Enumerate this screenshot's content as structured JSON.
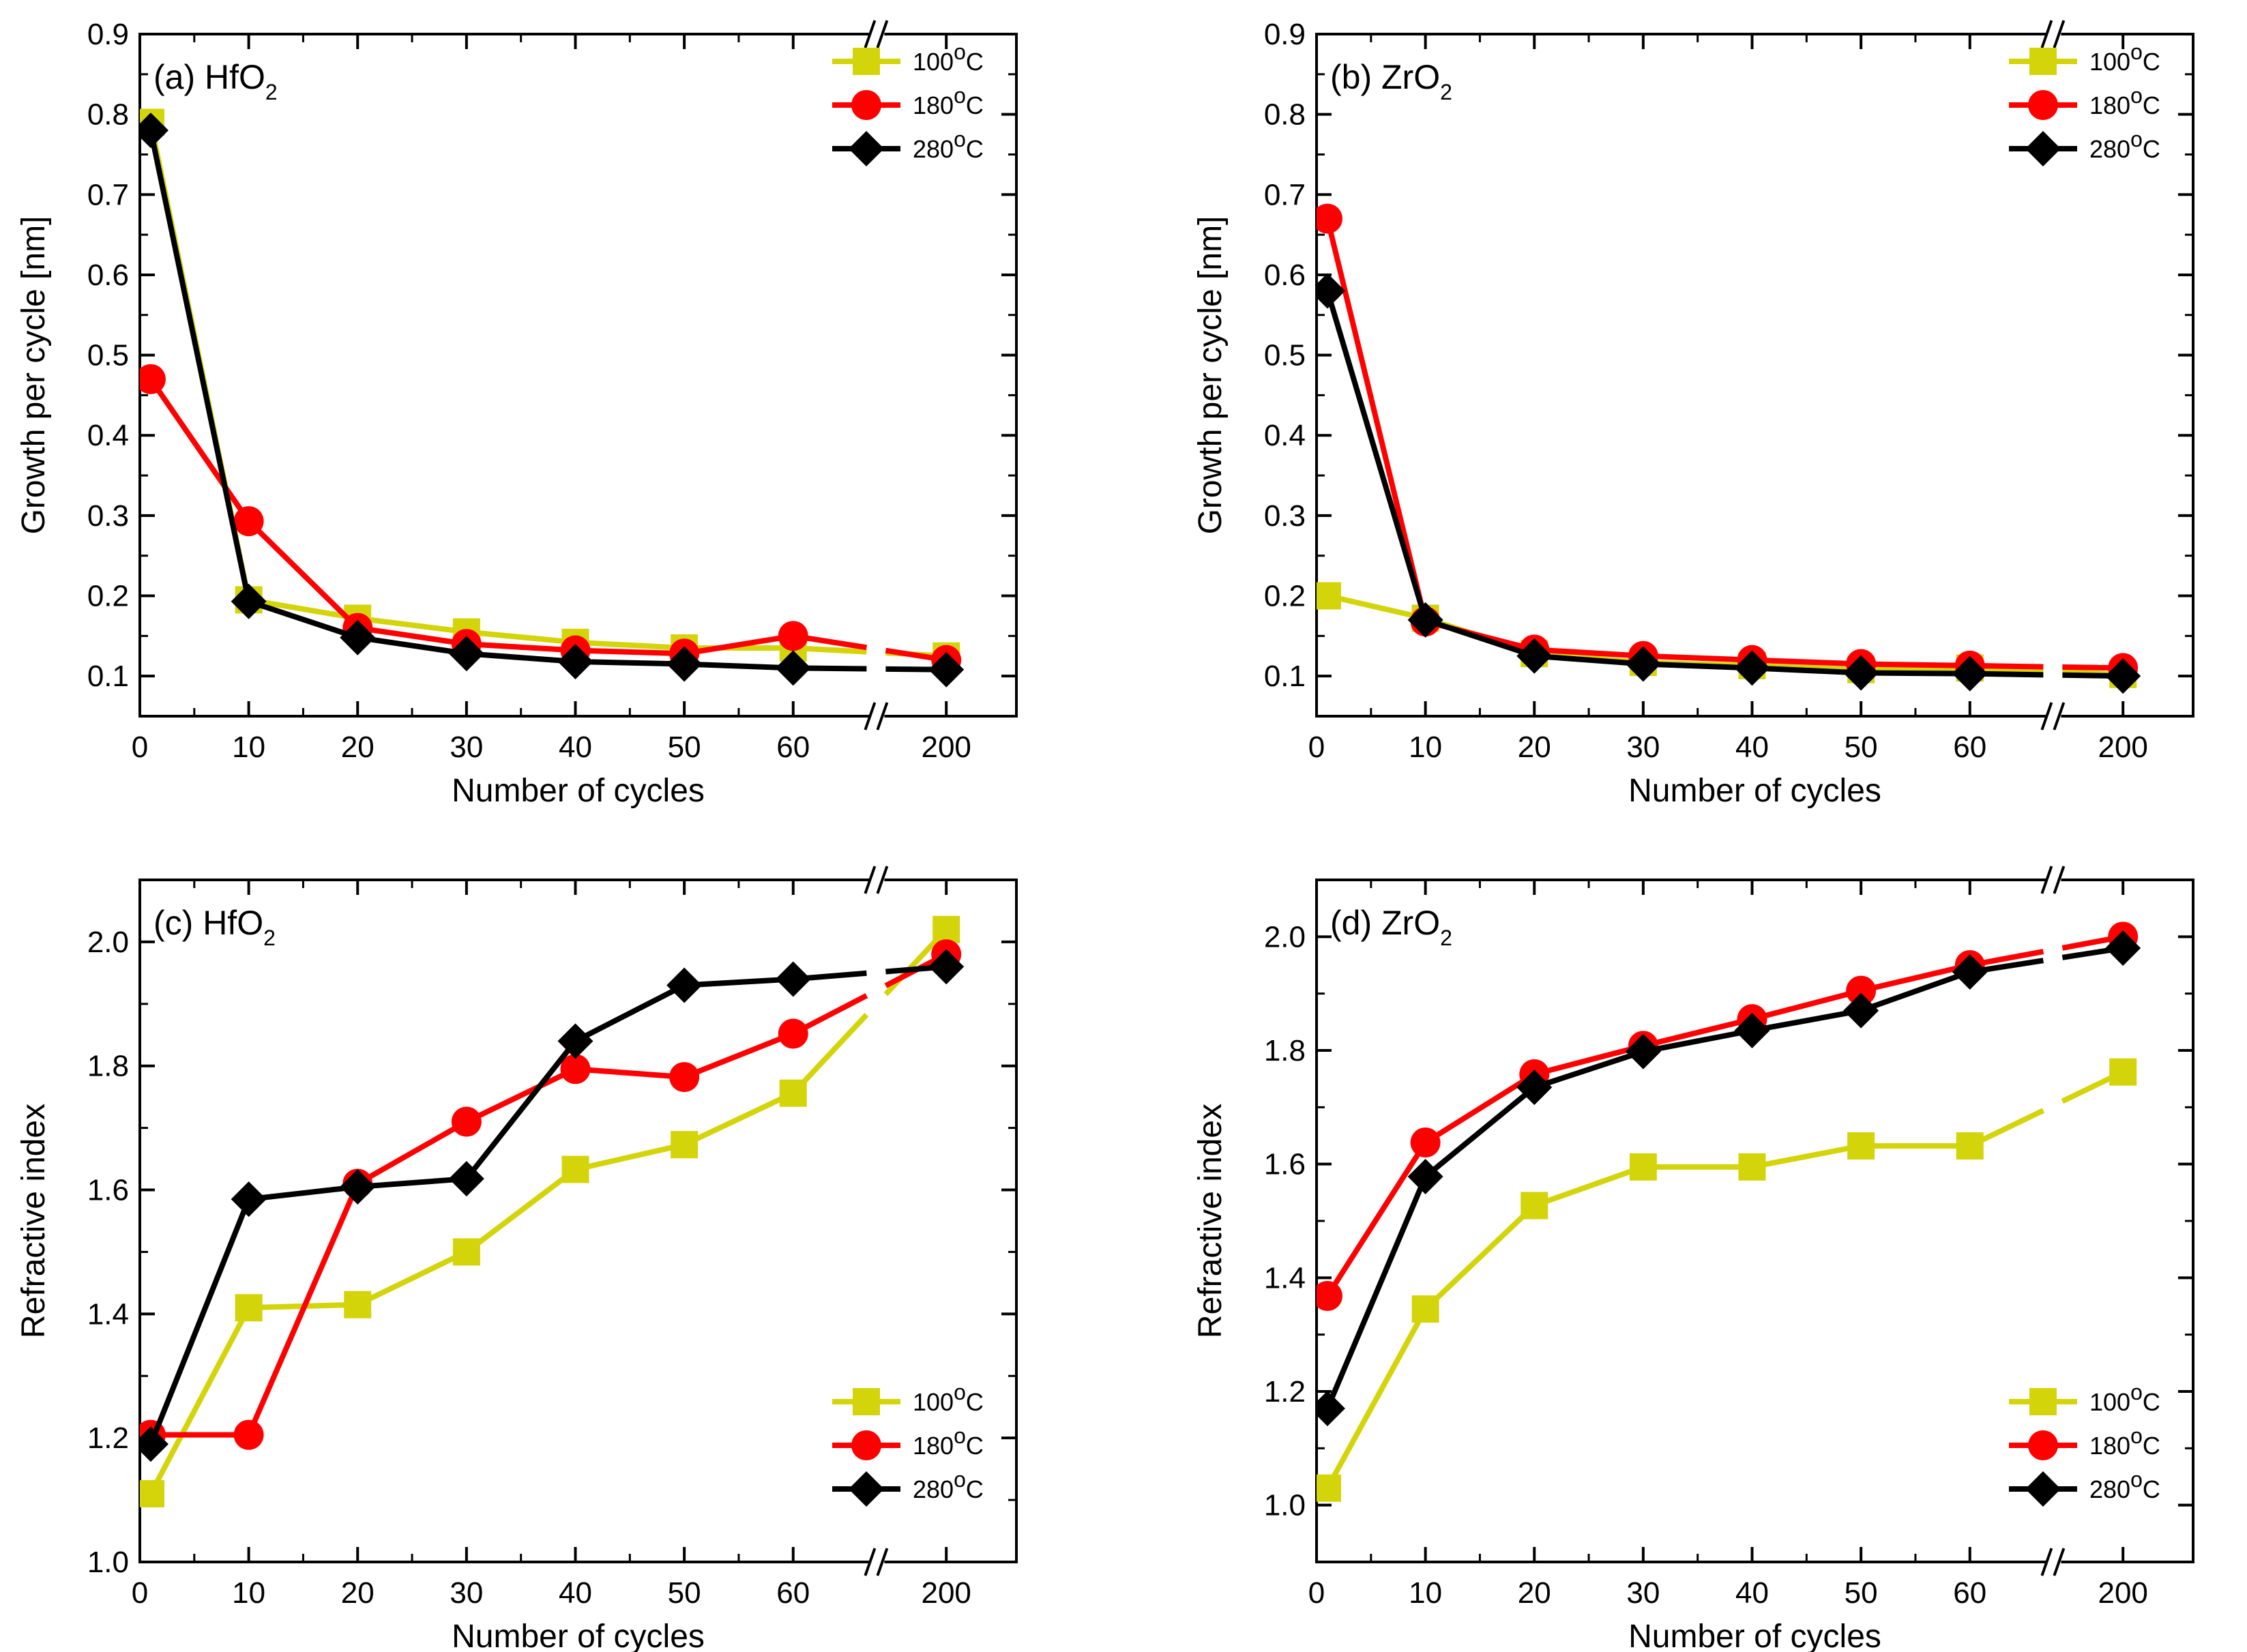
{
  "figure": {
    "panel_count": 4
  },
  "chart_data": [
    {
      "type": "line",
      "panel_label": "(a) HfO",
      "panel_sub": "2",
      "xlabel": "Number of cycles",
      "ylabel": "Growth per cycle [nm]",
      "ylim": [
        0.05,
        0.9
      ],
      "yticks": [
        0.1,
        0.2,
        0.3,
        0.4,
        0.5,
        0.6,
        0.7,
        0.8,
        0.9
      ],
      "ytick_labels": [
        "0.1",
        "0.2",
        "0.3",
        "0.4",
        "0.5",
        "0.6",
        "0.7",
        "0.8",
        "0.9"
      ],
      "x_break": true,
      "x": [
        1,
        10,
        20,
        30,
        40,
        50,
        60,
        200
      ],
      "xticks": [
        0,
        10,
        20,
        30,
        40,
        50,
        60,
        200
      ],
      "xtick_labels": [
        "0",
        "10",
        "20",
        "30",
        "40",
        "50",
        "60",
        "200"
      ],
      "legend_position": "top-right",
      "series": [
        {
          "name": "100",
          "name_sup": "o",
          "name_suffix": "C",
          "color": "#d4d40a",
          "marker": "square",
          "values": [
            0.79,
            0.195,
            0.172,
            0.155,
            0.142,
            0.135,
            0.135,
            0.125
          ]
        },
        {
          "name": "180",
          "name_sup": "o",
          "name_suffix": "C",
          "color": "#ff0000",
          "marker": "circle",
          "values": [
            0.47,
            0.293,
            0.16,
            0.14,
            0.132,
            0.128,
            0.15,
            0.12
          ]
        },
        {
          "name": "280",
          "name_sup": "o",
          "name_suffix": "C",
          "color": "#000000",
          "marker": "diamond",
          "values": [
            0.78,
            0.193,
            0.148,
            0.128,
            0.118,
            0.115,
            0.11,
            0.108
          ]
        }
      ]
    },
    {
      "type": "line",
      "panel_label": "(b) ZrO",
      "panel_sub": "2",
      "xlabel": "Number of cycles",
      "ylabel": "Growth per cycle [nm]",
      "ylim": [
        0.05,
        0.9
      ],
      "yticks": [
        0.1,
        0.2,
        0.3,
        0.4,
        0.5,
        0.6,
        0.7,
        0.8,
        0.9
      ],
      "ytick_labels": [
        "0.1",
        "0.2",
        "0.3",
        "0.4",
        "0.5",
        "0.6",
        "0.7",
        "0.8",
        "0.9"
      ],
      "x_break": true,
      "x": [
        1,
        10,
        20,
        30,
        40,
        50,
        60,
        200
      ],
      "xticks": [
        0,
        10,
        20,
        30,
        40,
        50,
        60,
        200
      ],
      "xtick_labels": [
        "0",
        "10",
        "20",
        "30",
        "40",
        "50",
        "60",
        "200"
      ],
      "legend_position": "top-right",
      "series": [
        {
          "name": "100",
          "name_sup": "o",
          "name_suffix": "C",
          "color": "#d4d40a",
          "marker": "square",
          "values": [
            0.2,
            0.172,
            0.128,
            0.117,
            0.113,
            0.108,
            0.11,
            0.102
          ]
        },
        {
          "name": "180",
          "name_sup": "o",
          "name_suffix": "C",
          "color": "#ff0000",
          "marker": "circle",
          "values": [
            0.67,
            0.168,
            0.133,
            0.125,
            0.12,
            0.115,
            0.113,
            0.11
          ]
        },
        {
          "name": "280",
          "name_sup": "o",
          "name_suffix": "C",
          "color": "#000000",
          "marker": "diamond",
          "values": [
            0.58,
            0.17,
            0.125,
            0.115,
            0.11,
            0.104,
            0.103,
            0.1
          ]
        }
      ]
    },
    {
      "type": "line",
      "panel_label": "(c) HfO",
      "panel_sub": "2",
      "xlabel": "Number of cycles",
      "ylabel": "Refractive index",
      "ylim": [
        1.0,
        2.1
      ],
      "yticks": [
        1.0,
        1.2,
        1.4,
        1.6,
        1.8,
        2.0
      ],
      "ytick_labels": [
        "1.0",
        "1.2",
        "1.4",
        "1.6",
        "1.8",
        "2.0"
      ],
      "x_break": true,
      "x": [
        1,
        10,
        20,
        30,
        40,
        50,
        60,
        200
      ],
      "xticks": [
        0,
        10,
        20,
        30,
        40,
        50,
        60,
        200
      ],
      "xtick_labels": [
        "0",
        "10",
        "20",
        "30",
        "40",
        "50",
        "60",
        "200"
      ],
      "legend_position": "bottom-right",
      "series": [
        {
          "name": "100",
          "name_sup": "o",
          "name_suffix": "C",
          "color": "#d4d40a",
          "marker": "square",
          "values": [
            1.11,
            1.41,
            1.415,
            1.5,
            1.633,
            1.673,
            1.756,
            2.02
          ]
        },
        {
          "name": "180",
          "name_sup": "o",
          "name_suffix": "C",
          "color": "#ff0000",
          "marker": "circle",
          "values": [
            1.205,
            1.205,
            1.61,
            1.71,
            1.795,
            1.782,
            1.852,
            1.98
          ]
        },
        {
          "name": "280",
          "name_sup": "o",
          "name_suffix": "C",
          "color": "#000000",
          "marker": "diamond",
          "values": [
            1.19,
            1.585,
            1.605,
            1.618,
            1.84,
            1.93,
            1.94,
            1.96
          ]
        }
      ]
    },
    {
      "type": "line",
      "panel_label": "(d) ZrO",
      "panel_sub": "2",
      "xlabel": "Number of cycles",
      "ylabel": "Refractive index",
      "ylim": [
        0.9,
        2.1
      ],
      "yticks": [
        1.0,
        1.2,
        1.4,
        1.6,
        1.8,
        2.0
      ],
      "ytick_labels": [
        "1.0",
        "1.2",
        "1.4",
        "1.6",
        "1.8",
        "2.0"
      ],
      "x_break": true,
      "x": [
        1,
        10,
        20,
        30,
        40,
        50,
        60,
        200
      ],
      "xticks": [
        0,
        10,
        20,
        30,
        40,
        50,
        60,
        200
      ],
      "xtick_labels": [
        "0",
        "10",
        "20",
        "30",
        "40",
        "50",
        "60",
        "200"
      ],
      "legend_position": "bottom-right",
      "series": [
        {
          "name": "100",
          "name_sup": "o",
          "name_suffix": "C",
          "color": "#d4d40a",
          "marker": "square",
          "values": [
            1.03,
            1.345,
            1.527,
            1.595,
            1.595,
            1.632,
            1.632,
            1.762
          ]
        },
        {
          "name": "180",
          "name_sup": "o",
          "name_suffix": "C",
          "color": "#ff0000",
          "marker": "circle",
          "values": [
            1.368,
            1.638,
            1.758,
            1.808,
            1.855,
            1.905,
            1.95,
            2.0
          ]
        },
        {
          "name": "280",
          "name_sup": "o",
          "name_suffix": "C",
          "color": "#000000",
          "marker": "diamond",
          "values": [
            1.17,
            1.578,
            1.735,
            1.798,
            1.835,
            1.87,
            1.938,
            1.98
          ]
        }
      ]
    }
  ]
}
